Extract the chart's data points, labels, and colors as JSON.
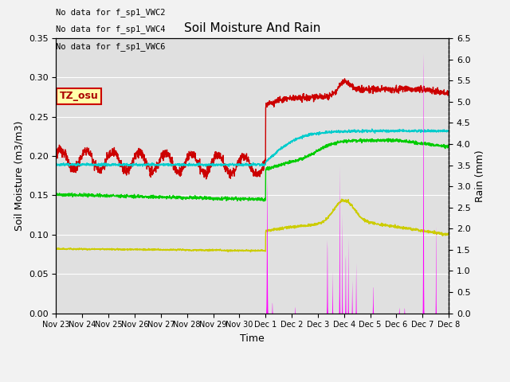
{
  "title": "Soil Moisture And Rain",
  "ylabel_left": "Soil Moisture (m3/m3)",
  "ylabel_right": "Rain (mm)",
  "xlabel": "Time",
  "ylim_left": [
    0,
    0.35
  ],
  "ylim_right": [
    0.0,
    6.5
  ],
  "yticks_left": [
    0.0,
    0.05,
    0.1,
    0.15,
    0.2,
    0.25,
    0.3,
    0.35
  ],
  "yticks_right": [
    0.0,
    0.5,
    1.0,
    1.5,
    2.0,
    2.5,
    3.0,
    3.5,
    4.0,
    4.5,
    5.0,
    5.5,
    6.0,
    6.5
  ],
  "no_data_text": [
    "No data for f_sp1_VWC2",
    "No data for f_sp1_VWC4",
    "No data for f_sp1_VWC6"
  ],
  "tz_label": "TZ_osu",
  "colors": {
    "vwc1": "#cc0000",
    "vwc3": "#00cc00",
    "vwc5": "#cccc00",
    "vwc7": "#00cccc",
    "rain": "#ff00ff"
  },
  "tick_labels": [
    "Nov 23",
    "Nov 24",
    "Nov 25",
    "Nov 26",
    "Nov 27",
    "Nov 28",
    "Nov 29",
    "Nov 30",
    "Dec 1",
    "Dec 2",
    "Dec 3",
    "Dec 4",
    "Dec 5",
    "Dec 6",
    "Dec 7",
    "Dec 8"
  ],
  "background_color": "#e0e0e0",
  "fig_facecolor": "#f2f2f2"
}
